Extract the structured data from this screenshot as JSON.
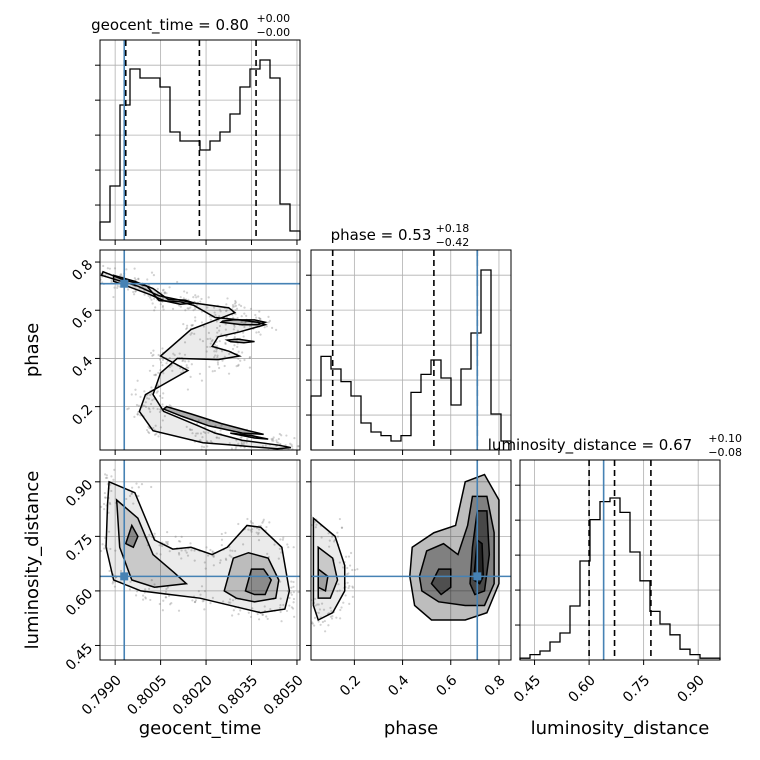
{
  "colors": {
    "truth": "#4682b4",
    "line": "#000000",
    "grid": "#b0b0b0",
    "density": "#000000"
  },
  "chart_data": {
    "type": "corner",
    "parameters": [
      {
        "name": "geocent_time",
        "title_name": "geocent_time = 0.80",
        "title_sup": "+0.00",
        "title_sub": "−0.00",
        "range": [
          0.7985,
          0.8051
        ],
        "ticks": [
          0.799,
          0.8005,
          0.802,
          0.8035,
          0.805
        ],
        "tick_labels": [
          "0.7990",
          "0.8005",
          "0.8020",
          "0.8035",
          "0.8050"
        ],
        "quantiles": [
          0.79935,
          0.80178,
          0.80365
        ],
        "truth": 0.7993,
        "hist_values": [
          0.1,
          0.3,
          0.75,
          0.95,
          0.9,
          0.9,
          0.85,
          0.6,
          0.55,
          0.55,
          0.5,
          0.55,
          0.6,
          0.7,
          0.85,
          0.95,
          1.0,
          0.9,
          0.2,
          0.05
        ]
      },
      {
        "name": "phase",
        "title_name": "phase = 0.53",
        "title_sup": "+0.18",
        "title_sub": "−0.42",
        "range": [
          0.02,
          0.85
        ],
        "ticks": [
          0.2,
          0.4,
          0.6,
          0.8
        ],
        "tick_labels": [
          "0.2",
          "0.4",
          "0.6",
          "0.8"
        ],
        "quantiles": [
          0.11,
          0.53,
          0.71
        ],
        "truth": 0.71,
        "hist_values": [
          0.3,
          0.52,
          0.45,
          0.38,
          0.3,
          0.15,
          0.1,
          0.08,
          0.05,
          0.08,
          0.32,
          0.42,
          0.5,
          0.4,
          0.25,
          0.45,
          0.65,
          1.0,
          0.2,
          0.05
        ]
      },
      {
        "name": "luminosity_distance",
        "title_name": "luminosity_distance = 0.67",
        "title_sup": "+0.10",
        "title_sub": "−0.08",
        "range": [
          0.41,
          0.96
        ],
        "ticks": [
          0.45,
          0.6,
          0.75,
          0.9
        ],
        "tick_labels": [
          "0.45",
          "0.60",
          "0.75",
          "0.90"
        ],
        "quantiles": [
          0.6,
          0.67,
          0.77
        ],
        "truth": 0.64,
        "hist_values": [
          0.01,
          0.03,
          0.05,
          0.1,
          0.15,
          0.3,
          0.55,
          0.78,
          0.88,
          0.9,
          0.82,
          0.6,
          0.44,
          0.27,
          0.2,
          0.14,
          0.06,
          0.03,
          0.01,
          0.01
        ]
      }
    ],
    "pairs": [
      {
        "x": "geocent_time",
        "y": "phase",
        "truth": [
          0.7993,
          0.71
        ],
        "contours": [
          [
            [
              0.7986,
              0.76
            ],
            [
              0.7992,
              0.73
            ],
            [
              0.80005,
              0.7
            ],
            [
              0.80045,
              0.64
            ],
            [
              0.80115,
              0.635
            ],
            [
              0.8016,
              0.62
            ],
            [
              0.8023,
              0.57
            ],
            [
              0.8031,
              0.56
            ],
            [
              0.8037,
              0.55
            ],
            [
              0.80395,
              0.54
            ],
            [
              0.8031,
              0.51
            ],
            [
              0.8024,
              0.49
            ],
            [
              0.8022,
              0.45
            ],
            [
              0.80275,
              0.43
            ],
            [
              0.8031,
              0.41
            ],
            [
              0.8024,
              0.395
            ],
            [
              0.80105,
              0.4
            ],
            [
              0.8005,
              0.34
            ],
            [
              0.80025,
              0.25
            ],
            [
              0.8006,
              0.18
            ],
            [
              0.80175,
              0.12
            ],
            [
              0.8023,
              0.09
            ],
            [
              0.8032,
              0.06
            ],
            [
              0.8044,
              0.04
            ],
            [
              0.8048,
              0.03
            ],
            [
              0.80435,
              0.025
            ],
            [
              0.8029,
              0.04
            ],
            [
              0.8019,
              0.05
            ],
            [
              0.80025,
              0.1
            ],
            [
              0.7998,
              0.18
            ],
            [
              0.8,
              0.25
            ],
            [
              0.8014,
              0.35
            ],
            [
              0.8005,
              0.41
            ],
            [
              0.8015,
              0.52
            ],
            [
              0.80295,
              0.59
            ],
            [
              0.80275,
              0.61
            ],
            [
              0.8016,
              0.63
            ],
            [
              0.80045,
              0.66
            ],
            [
              0.79975,
              0.7
            ],
            [
              0.7992,
              0.72
            ],
            [
              0.79855,
              0.745
            ]
          ],
          [
            [
              0.79895,
              0.745
            ],
            [
              0.79965,
              0.72
            ],
            [
              0.80025,
              0.69
            ],
            [
              0.80075,
              0.645
            ],
            [
              0.8013,
              0.642
            ],
            [
              0.8016,
              0.63
            ],
            [
              0.80115,
              0.625
            ],
            [
              0.8006,
              0.64
            ],
            [
              0.80015,
              0.665
            ],
            [
              0.7994,
              0.7
            ],
            [
              0.79895,
              0.72
            ]
          ],
          [
            [
              0.8025,
              0.55
            ],
            [
              0.8032,
              0.54
            ],
            [
              0.8037,
              0.54
            ],
            [
              0.80395,
              0.55
            ],
            [
              0.8036,
              0.56
            ],
            [
              0.8029,
              0.56
            ],
            [
              0.80255,
              0.555
            ]
          ],
          [
            [
              0.8028,
              0.47
            ],
            [
              0.80325,
              0.465
            ],
            [
              0.8036,
              0.47
            ],
            [
              0.80305,
              0.48
            ],
            [
              0.8027,
              0.476
            ]
          ],
          [
            [
              0.8007,
              0.2
            ],
            [
              0.8015,
              0.17
            ],
            [
              0.8025,
              0.13
            ],
            [
              0.8034,
              0.1
            ],
            [
              0.8039,
              0.085
            ],
            [
              0.8032,
              0.09
            ],
            [
              0.8021,
              0.12
            ],
            [
              0.8012,
              0.16
            ],
            [
              0.8006,
              0.19
            ]
          ],
          [
            [
              0.8028,
              0.09
            ],
            [
              0.8036,
              0.07
            ],
            [
              0.80405,
              0.065
            ],
            [
              0.8035,
              0.08
            ]
          ]
        ]
      },
      {
        "x": "geocent_time",
        "y": "luminosity_distance",
        "truth": [
          0.7993,
          0.64
        ],
        "contours": [
          [
            [
              0.7988,
              0.9
            ],
            [
              0.79965,
              0.87
            ],
            [
              0.8003,
              0.74
            ],
            [
              0.8009,
              0.715
            ],
            [
              0.8015,
              0.72
            ],
            [
              0.8022,
              0.7
            ],
            [
              0.8027,
              0.72
            ],
            [
              0.80335,
              0.78
            ],
            [
              0.8038,
              0.775
            ],
            [
              0.8045,
              0.72
            ],
            [
              0.80475,
              0.6
            ],
            [
              0.8046,
              0.55
            ],
            [
              0.8038,
              0.54
            ],
            [
              0.8028,
              0.56
            ],
            [
              0.8018,
              0.58
            ],
            [
              0.8008,
              0.59
            ],
            [
              0.79985,
              0.6
            ],
            [
              0.79895,
              0.63
            ],
            [
              0.7987,
              0.72
            ],
            [
              0.79875,
              0.84
            ]
          ],
          [
            [
              0.79905,
              0.85
            ],
            [
              0.79975,
              0.8
            ],
            [
              0.80025,
              0.7
            ],
            [
              0.80095,
              0.65
            ],
            [
              0.80135,
              0.62
            ],
            [
              0.8003,
              0.61
            ],
            [
              0.79955,
              0.63
            ],
            [
              0.79915,
              0.72
            ]
          ],
          [
            [
              0.8026,
              0.6
            ],
            [
              0.8029,
              0.69
            ],
            [
              0.8034,
              0.705
            ],
            [
              0.80405,
              0.69
            ],
            [
              0.8044,
              0.63
            ],
            [
              0.8043,
              0.58
            ],
            [
              0.8036,
              0.57
            ],
            [
              0.803,
              0.58
            ]
          ],
          [
            [
              0.8033,
              0.6
            ],
            [
              0.8035,
              0.66
            ],
            [
              0.8039,
              0.66
            ],
            [
              0.80415,
              0.63
            ],
            [
              0.80395,
              0.59
            ],
            [
              0.8036,
              0.59
            ]
          ],
          [
            [
              0.79935,
              0.73
            ],
            [
              0.79955,
              0.78
            ],
            [
              0.79975,
              0.75
            ],
            [
              0.7996,
              0.72
            ]
          ]
        ]
      },
      {
        "x": "phase",
        "y": "luminosity_distance",
        "truth": [
          0.71,
          0.64
        ],
        "contours": [
          [
            [
              0.03,
              0.8
            ],
            [
              0.12,
              0.75
            ],
            [
              0.16,
              0.67
            ],
            [
              0.16,
              0.6
            ],
            [
              0.11,
              0.54
            ],
            [
              0.05,
              0.52
            ],
            [
              0.03,
              0.56
            ]
          ],
          [
            [
              0.05,
              0.72
            ],
            [
              0.11,
              0.69
            ],
            [
              0.13,
              0.63
            ],
            [
              0.1,
              0.58
            ],
            [
              0.05,
              0.58
            ]
          ],
          [
            [
              0.05,
              0.66
            ],
            [
              0.09,
              0.64
            ],
            [
              0.08,
              0.6
            ],
            [
              0.05,
              0.61
            ]
          ],
          [
            [
              0.44,
              0.72
            ],
            [
              0.53,
              0.76
            ],
            [
              0.62,
              0.78
            ],
            [
              0.66,
              0.9
            ],
            [
              0.74,
              0.92
            ],
            [
              0.8,
              0.85
            ],
            [
              0.8,
              0.62
            ],
            [
              0.75,
              0.54
            ],
            [
              0.66,
              0.52
            ],
            [
              0.52,
              0.52
            ],
            [
              0.45,
              0.56
            ],
            [
              0.43,
              0.64
            ]
          ],
          [
            [
              0.47,
              0.64
            ],
            [
              0.5,
              0.71
            ],
            [
              0.57,
              0.73
            ],
            [
              0.63,
              0.7
            ],
            [
              0.67,
              0.78
            ],
            [
              0.69,
              0.86
            ],
            [
              0.75,
              0.86
            ],
            [
              0.78,
              0.76
            ],
            [
              0.78,
              0.62
            ],
            [
              0.74,
              0.56
            ],
            [
              0.66,
              0.56
            ],
            [
              0.55,
              0.57
            ],
            [
              0.48,
              0.6
            ]
          ],
          [
            [
              0.52,
              0.62
            ],
            [
              0.55,
              0.66
            ],
            [
              0.6,
              0.66
            ],
            [
              0.6,
              0.61
            ],
            [
              0.56,
              0.59
            ]
          ],
          [
            [
              0.68,
              0.62
            ],
            [
              0.69,
              0.72
            ],
            [
              0.71,
              0.82
            ],
            [
              0.75,
              0.82
            ],
            [
              0.76,
              0.7
            ],
            [
              0.74,
              0.6
            ],
            [
              0.7,
              0.59
            ]
          ],
          [
            [
              0.695,
              0.63
            ],
            [
              0.71,
              0.74
            ],
            [
              0.73,
              0.73
            ],
            [
              0.735,
              0.64
            ],
            [
              0.72,
              0.62
            ]
          ]
        ]
      }
    ]
  }
}
